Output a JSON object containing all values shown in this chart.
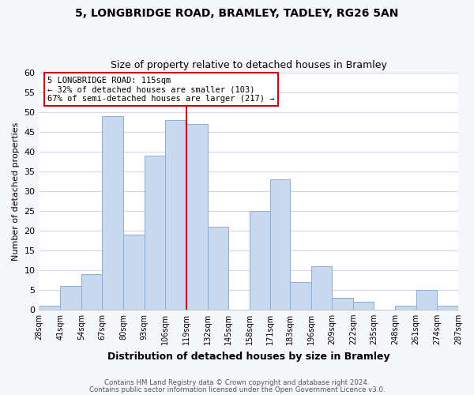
{
  "title": "5, LONGBRIDGE ROAD, BRAMLEY, TADLEY, RG26 5AN",
  "subtitle": "Size of property relative to detached houses in Bramley",
  "xlabel": "Distribution of detached houses by size in Bramley",
  "ylabel": "Number of detached properties",
  "bar_edges": [
    28,
    41,
    54,
    67,
    80,
    93,
    106,
    119,
    132,
    145,
    158,
    171,
    183,
    196,
    209,
    222,
    235,
    248,
    261,
    274,
    287
  ],
  "bar_heights": [
    1,
    6,
    9,
    49,
    19,
    39,
    48,
    47,
    21,
    0,
    25,
    33,
    7,
    11,
    3,
    2,
    0,
    1,
    5,
    1
  ],
  "bar_color": "#c8d8ee",
  "bar_edgecolor": "#8ab0d8",
  "vline_x": 119,
  "vline_color": "#cc0000",
  "ylim": [
    0,
    60
  ],
  "yticks": [
    0,
    5,
    10,
    15,
    20,
    25,
    30,
    35,
    40,
    45,
    50,
    55,
    60
  ],
  "annotation_title": "5 LONGBRIDGE ROAD: 115sqm",
  "annotation_line1": "← 32% of detached houses are smaller (103)",
  "annotation_line2": "67% of semi-detached houses are larger (217) →",
  "annotation_box_color": "#ffffff",
  "annotation_box_edgecolor": "#cc0000",
  "grid_color": "#d0d8e8",
  "plot_bg_color": "#ffffff",
  "fig_bg_color": "#f5f7fa",
  "footer1": "Contains HM Land Registry data © Crown copyright and database right 2024.",
  "footer2": "Contains public sector information licensed under the Open Government Licence v3.0.",
  "tick_labels": [
    "28sqm",
    "41sqm",
    "54sqm",
    "67sqm",
    "80sqm",
    "93sqm",
    "106sqm",
    "119sqm",
    "132sqm",
    "145sqm",
    "158sqm",
    "171sqm",
    "183sqm",
    "196sqm",
    "209sqm",
    "222sqm",
    "235sqm",
    "248sqm",
    "261sqm",
    "274sqm",
    "287sqm"
  ]
}
